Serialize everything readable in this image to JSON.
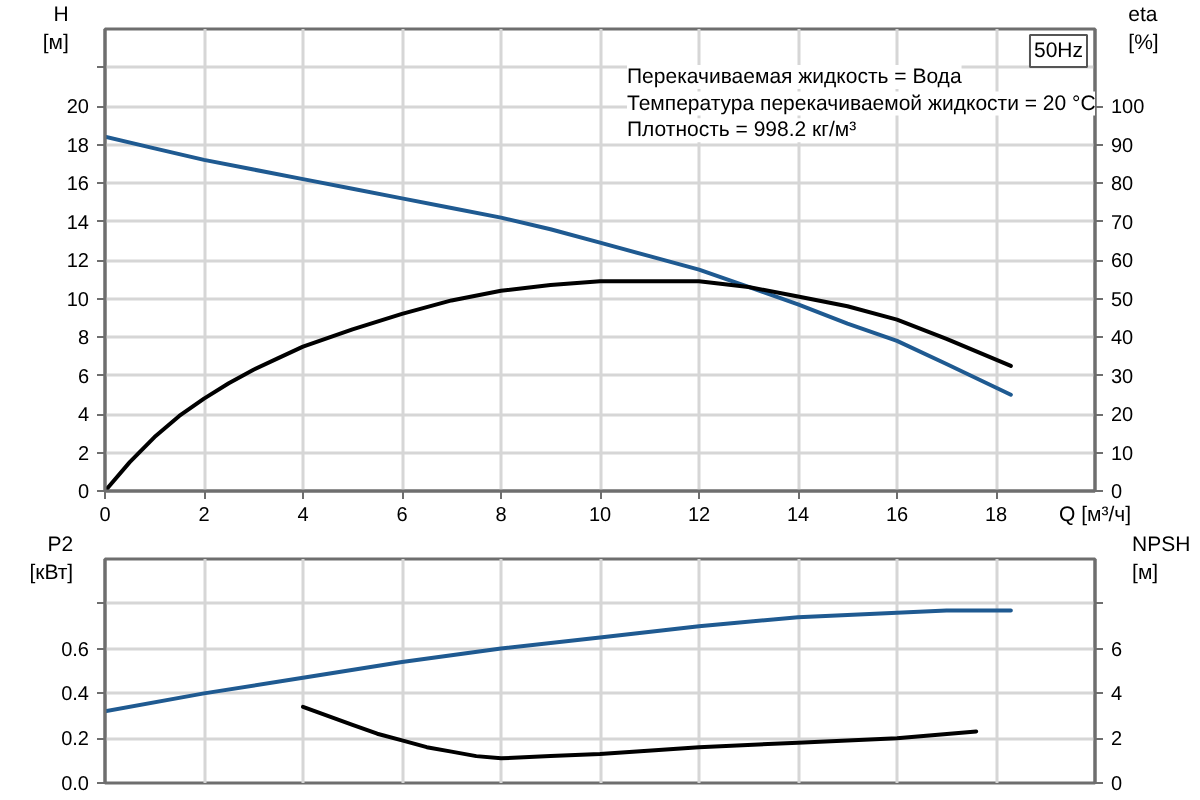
{
  "chart_data": [
    {
      "type": "line",
      "title": "50Hz",
      "xlabel": "Q [м³/ч]",
      "ylabel": "H [м]",
      "y2label": "eta [%]",
      "annotations": [
        "Перекачиваемая жидкость = Вода",
        "Температура перекачиваемой жидкости = 20 °C",
        "Плотность = 998.2 кг/м³"
      ],
      "xlim": [
        0,
        20
      ],
      "xticks": [
        0,
        2,
        4,
        6,
        8,
        10,
        12,
        14,
        16,
        18
      ],
      "ylim": [
        0,
        24
      ],
      "yticks": [
        0,
        2,
        4,
        6,
        8,
        10,
        12,
        14,
        16,
        18,
        20,
        {
          "value": 22,
          "label": null
        }
      ],
      "y2lim": [
        0,
        120
      ],
      "y2ticks": [
        0,
        10,
        20,
        30,
        40,
        50,
        60,
        70,
        80,
        90,
        100
      ],
      "grid": true,
      "series": [
        {
          "color": "#1f5a91",
          "x": [
            0,
            1,
            2,
            3,
            4,
            5,
            6,
            7,
            8,
            9,
            10,
            11,
            12,
            13,
            14,
            15,
            16,
            17,
            18.3
          ],
          "values": [
            18.4,
            17.8,
            17.2,
            16.7,
            16.2,
            15.7,
            15.2,
            14.7,
            14.2,
            13.6,
            12.9,
            12.2,
            11.5,
            10.6,
            9.7,
            8.7,
            7.8,
            6.6,
            5.0
          ]
        },
        {
          "color": "#000000",
          "axis": "y2",
          "x": [
            0,
            0.5,
            1,
            1.5,
            2,
            2.5,
            3,
            3.5,
            4,
            5,
            6,
            7,
            8,
            9,
            10,
            11,
            12,
            13,
            14,
            15,
            16,
            17,
            18.3
          ],
          "values": [
            0,
            7.5,
            14,
            19.5,
            24,
            28,
            31.5,
            34.5,
            37.5,
            42,
            46,
            49.5,
            52,
            53.5,
            54.5,
            54.5,
            54.5,
            53,
            50.5,
            48,
            44.5,
            39.5,
            32.5
          ]
        }
      ]
    },
    {
      "type": "line",
      "ylabel": "P2 [кВт]",
      "y2label": "NPSH [м]",
      "xlim": [
        0,
        20
      ],
      "xticks": [
        0,
        2,
        4,
        6,
        8,
        10,
        12,
        14,
        16,
        18
      ],
      "ylim": [
        0,
        1.0
      ],
      "yticks": [
        {
          "value": 0,
          "label": "0.0"
        },
        0.2,
        0.4,
        0.6,
        {
          "value": 0.8,
          "label": null
        }
      ],
      "y2lim": [
        0,
        10
      ],
      "y2ticks": [
        0,
        2,
        4,
        6,
        {
          "value": 8,
          "label": null
        }
      ],
      "grid": true,
      "tick_labels": "y",
      "series": [
        {
          "color": "#1f5a91",
          "x": [
            0,
            2,
            4,
            6,
            8,
            10,
            12,
            14,
            16,
            17,
            18.3
          ],
          "values": [
            0.32,
            0.4,
            0.47,
            0.54,
            0.6,
            0.65,
            0.7,
            0.74,
            0.76,
            0.77,
            0.77
          ]
        },
        {
          "color": "#000000",
          "axis": "y2",
          "x": [
            4,
            4.5,
            5,
            5.5,
            6,
            6.5,
            7,
            7.5,
            8,
            9,
            10,
            12,
            14,
            16,
            17.6
          ],
          "values": [
            3.4,
            3.0,
            2.6,
            2.2,
            1.9,
            1.6,
            1.4,
            1.2,
            1.1,
            1.2,
            1.3,
            1.6,
            1.8,
            2.0,
            2.3
          ]
        }
      ]
    }
  ]
}
